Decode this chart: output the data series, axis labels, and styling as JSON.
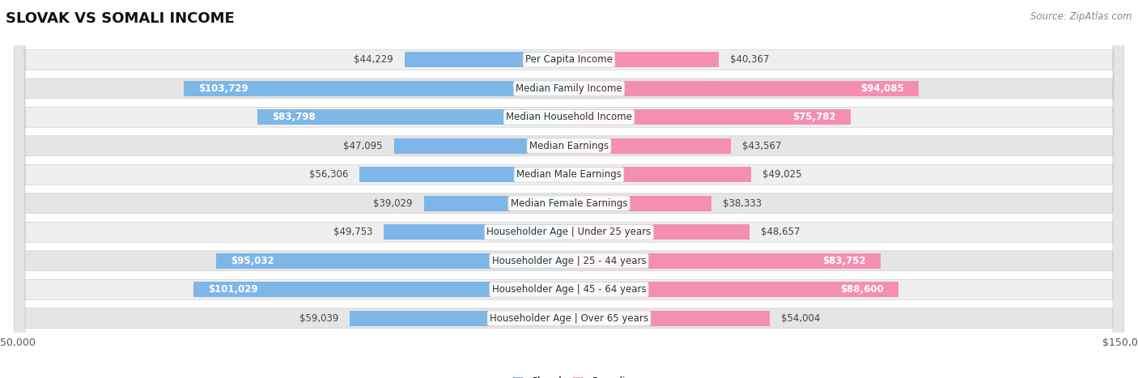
{
  "title": "SLOVAK VS SOMALI INCOME",
  "source": "Source: ZipAtlas.com",
  "categories": [
    "Per Capita Income",
    "Median Family Income",
    "Median Household Income",
    "Median Earnings",
    "Median Male Earnings",
    "Median Female Earnings",
    "Householder Age | Under 25 years",
    "Householder Age | 25 - 44 years",
    "Householder Age | 45 - 64 years",
    "Householder Age | Over 65 years"
  ],
  "slovak_values": [
    44229,
    103729,
    83798,
    47095,
    56306,
    39029,
    49753,
    95032,
    101029,
    59039
  ],
  "somali_values": [
    40367,
    94085,
    75782,
    43567,
    49025,
    38333,
    48657,
    83752,
    88600,
    54004
  ],
  "slovak_labels": [
    "$44,229",
    "$103,729",
    "$83,798",
    "$47,095",
    "$56,306",
    "$39,029",
    "$49,753",
    "$95,032",
    "$101,029",
    "$59,039"
  ],
  "somali_labels": [
    "$40,367",
    "$94,085",
    "$75,782",
    "$43,567",
    "$49,025",
    "$38,333",
    "$48,657",
    "$83,752",
    "$88,600",
    "$54,004"
  ],
  "slovak_color": "#7EB6E8",
  "somali_color": "#F48FB1",
  "max_value": 150000,
  "bar_height": 0.62,
  "label_fontsize": 8.5,
  "title_fontsize": 13,
  "category_fontsize": 8.5,
  "background_color": "#FFFFFF",
  "row_colors": [
    "#EFEFEF",
    "#E5E5E5"
  ],
  "inside_label_threshold": 65000
}
